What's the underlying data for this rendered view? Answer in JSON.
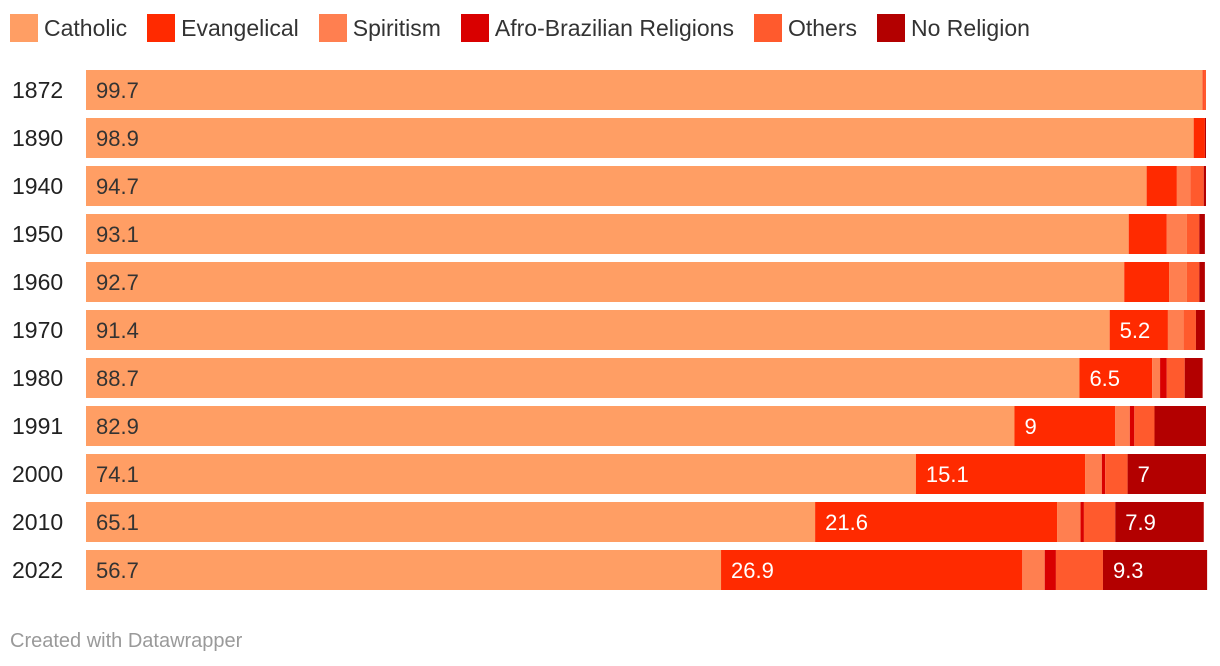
{
  "chart_data": {
    "type": "bar",
    "orientation": "horizontal",
    "stacked": true,
    "categories": [
      "1872",
      "1890",
      "1940",
      "1950",
      "1960",
      "1970",
      "1980",
      "1991",
      "2000",
      "2010",
      "2022"
    ],
    "series": [
      {
        "name": "Catholic",
        "color": "#ff9e64",
        "values": [
          99.7,
          98.9,
          94.7,
          93.1,
          92.7,
          91.4,
          88.7,
          82.9,
          74.1,
          65.1,
          56.7
        ],
        "labels": [
          true,
          true,
          true,
          true,
          true,
          true,
          true,
          true,
          true,
          true,
          true
        ]
      },
      {
        "name": "Evangelical",
        "color": "#ff2a00",
        "values": [
          0.1,
          1.0,
          2.7,
          3.4,
          4.0,
          5.2,
          6.5,
          9,
          15.1,
          21.6,
          26.9
        ],
        "labels": [
          false,
          false,
          false,
          false,
          false,
          true,
          true,
          true,
          true,
          true,
          true
        ]
      },
      {
        "name": "Spiritism",
        "color": "#ff7f50",
        "values": [
          0,
          0,
          1.2,
          1.8,
          1.6,
          1.4,
          0.7,
          1.3,
          1.5,
          2.1,
          2.0
        ],
        "labels": [
          false,
          false,
          false,
          false,
          false,
          false,
          false,
          false,
          false,
          false,
          false
        ]
      },
      {
        "name": "Afro-Brazilian Religions",
        "color": "#d90000",
        "values": [
          0,
          0,
          0,
          0,
          0,
          0,
          0.6,
          0.4,
          0.3,
          0.3,
          1.0
        ],
        "labels": [
          false,
          false,
          false,
          false,
          false,
          false,
          false,
          false,
          false,
          false,
          false
        ]
      },
      {
        "name": "Others",
        "color": "#ff5a2d",
        "values": [
          0.2,
          0,
          1.2,
          1.1,
          1.1,
          1.1,
          1.6,
          1.8,
          2.0,
          2.8,
          4.2
        ],
        "labels": [
          false,
          false,
          false,
          false,
          false,
          false,
          false,
          false,
          false,
          false,
          false
        ]
      },
      {
        "name": "No Religion",
        "color": "#b30000",
        "values": [
          0,
          0.1,
          0.2,
          0.5,
          0.5,
          0.8,
          1.6,
          4.6,
          7,
          7.9,
          9.3
        ],
        "labels": [
          false,
          false,
          false,
          false,
          false,
          false,
          false,
          false,
          true,
          true,
          true
        ]
      }
    ],
    "xlim": [
      0,
      100
    ],
    "legend_position": "top-left",
    "grid": false
  },
  "footer": {
    "credit": "Created with Datawrapper"
  }
}
